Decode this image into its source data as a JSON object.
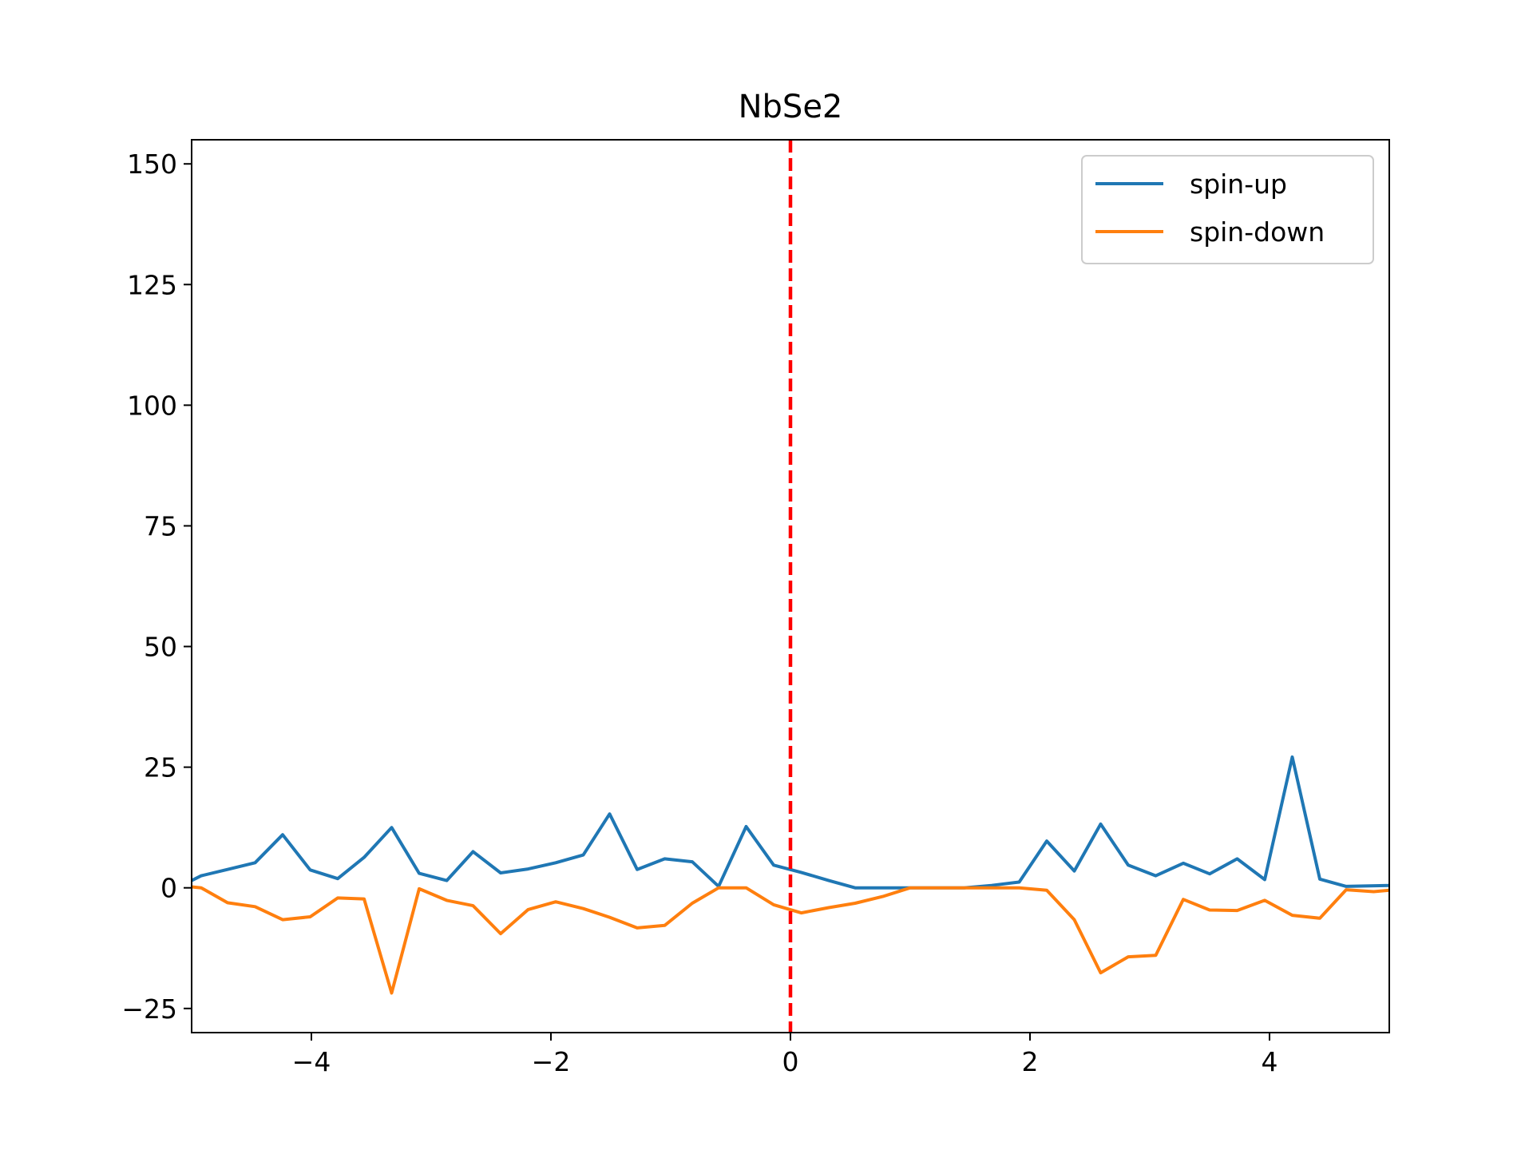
{
  "chart_data": {
    "type": "line",
    "title": "NbSe2",
    "xlabel": "",
    "ylabel": "",
    "xlim": [
      -5,
      5
    ],
    "ylim": [
      -30,
      155
    ],
    "x_ticks": [
      -4,
      -2,
      0,
      2,
      4
    ],
    "x_tick_labels": [
      "−4",
      "−2",
      "0",
      "2",
      "4"
    ],
    "y_ticks": [
      -25,
      0,
      25,
      50,
      75,
      100,
      125,
      150
    ],
    "y_tick_labels": [
      "−25",
      "0",
      "25",
      "50",
      "75",
      "100",
      "125",
      "150"
    ],
    "grid": false,
    "legend_position": "top-right",
    "reference_line": {
      "x": 0,
      "color": "#ff0000",
      "style": "dashed"
    },
    "series": [
      {
        "name": "spin-up",
        "color": "#1f77b4",
        "points": [
          [
            -5.0,
            1.5
          ],
          [
            -4.92,
            2.5
          ],
          [
            -4.7,
            3.8
          ],
          [
            -4.47,
            5.2
          ],
          [
            -4.24,
            11.0
          ],
          [
            -4.01,
            3.7
          ],
          [
            -3.78,
            1.9
          ],
          [
            -3.56,
            6.3
          ],
          [
            -3.33,
            12.5
          ],
          [
            -3.1,
            3.0
          ],
          [
            -2.87,
            1.5
          ],
          [
            -2.65,
            7.5
          ],
          [
            -2.42,
            3.1
          ],
          [
            -2.19,
            3.9
          ],
          [
            -1.96,
            5.2
          ],
          [
            -1.73,
            6.8
          ],
          [
            -1.51,
            15.3
          ],
          [
            -1.28,
            3.8
          ],
          [
            -1.05,
            6.0
          ],
          [
            -0.82,
            5.4
          ],
          [
            -0.6,
            0.3
          ],
          [
            -0.37,
            12.7
          ],
          [
            -0.14,
            4.7
          ],
          [
            0.09,
            3.2
          ],
          [
            0.32,
            1.5
          ],
          [
            0.54,
            0.0
          ],
          [
            0.77,
            0.0
          ],
          [
            1.0,
            0.0
          ],
          [
            1.23,
            0.0
          ],
          [
            1.45,
            0.0
          ],
          [
            1.68,
            0.5
          ],
          [
            1.91,
            1.2
          ],
          [
            2.14,
            9.7
          ],
          [
            2.37,
            3.5
          ],
          [
            2.59,
            13.2
          ],
          [
            2.82,
            4.7
          ],
          [
            3.05,
            2.5
          ],
          [
            3.28,
            5.1
          ],
          [
            3.5,
            2.9
          ],
          [
            3.73,
            6.0
          ],
          [
            3.96,
            1.7
          ],
          [
            4.19,
            27.1
          ],
          [
            4.42,
            1.8
          ],
          [
            4.64,
            0.3
          ],
          [
            5.0,
            0.5
          ]
        ]
      },
      {
        "name": "spin-down",
        "color": "#ff7f0e",
        "points": [
          [
            -5.0,
            0.2
          ],
          [
            -4.92,
            0.0
          ],
          [
            -4.7,
            -3.1
          ],
          [
            -4.47,
            -3.9
          ],
          [
            -4.24,
            -6.6
          ],
          [
            -4.01,
            -6.0
          ],
          [
            -3.78,
            -2.1
          ],
          [
            -3.56,
            -2.3
          ],
          [
            -3.33,
            -21.8
          ],
          [
            -3.1,
            -0.2
          ],
          [
            -2.87,
            -2.6
          ],
          [
            -2.65,
            -3.7
          ],
          [
            -2.42,
            -9.5
          ],
          [
            -2.19,
            -4.5
          ],
          [
            -1.96,
            -2.9
          ],
          [
            -1.73,
            -4.3
          ],
          [
            -1.51,
            -6.1
          ],
          [
            -1.28,
            -8.3
          ],
          [
            -1.05,
            -7.8
          ],
          [
            -0.82,
            -3.2
          ],
          [
            -0.6,
            0.0
          ],
          [
            -0.37,
            0.0
          ],
          [
            -0.14,
            -3.5
          ],
          [
            0.09,
            -5.2
          ],
          [
            0.32,
            -4.1
          ],
          [
            0.54,
            -3.2
          ],
          [
            0.77,
            -1.8
          ],
          [
            1.0,
            0.0
          ],
          [
            1.23,
            0.0
          ],
          [
            1.45,
            0.0
          ],
          [
            1.68,
            0.0
          ],
          [
            1.91,
            0.0
          ],
          [
            2.14,
            -0.5
          ],
          [
            2.37,
            -6.6
          ],
          [
            2.59,
            -17.6
          ],
          [
            2.82,
            -14.3
          ],
          [
            3.05,
            -14.0
          ],
          [
            3.28,
            -2.4
          ],
          [
            3.5,
            -4.6
          ],
          [
            3.73,
            -4.7
          ],
          [
            3.96,
            -2.6
          ],
          [
            4.19,
            -5.7
          ],
          [
            4.42,
            -6.3
          ],
          [
            4.64,
            -0.4
          ],
          [
            4.87,
            -0.8
          ],
          [
            5.0,
            -0.5
          ]
        ]
      }
    ]
  }
}
